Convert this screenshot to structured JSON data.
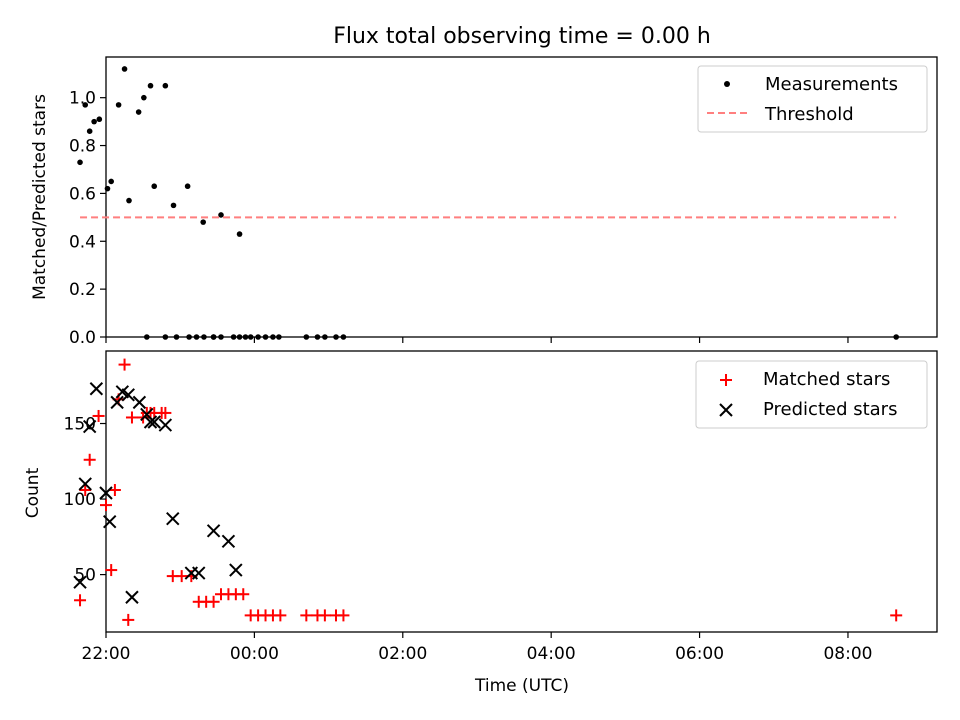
{
  "figure": {
    "title": "Flux total observing time = 0.00 h",
    "xlabel": "Time (UTC)"
  },
  "chart_data": [
    {
      "type": "scatter",
      "ylabel": "Matched/Predicted stars",
      "ylim": [
        0,
        1.17
      ],
      "yticks": [
        0.0,
        0.2,
        0.4,
        0.6,
        0.8,
        1.0
      ],
      "ytick_labels": [
        "0.0",
        "0.2",
        "0.4",
        "0.6",
        "0.8",
        "1.0"
      ],
      "x_unit": "hours since 00:00 UTC",
      "xlim": [
        -2.0,
        9.2
      ],
      "xticks": [
        -2,
        0,
        2,
        4,
        6,
        8
      ],
      "legend": "top-right",
      "series": [
        {
          "name": "Measurements",
          "kind": "scatter",
          "marker": "dot",
          "color": "#000000",
          "x": [
            -2.35,
            -2.28,
            -2.22,
            -2.16,
            -2.09,
            -1.98,
            -1.93,
            -1.83,
            -1.75,
            -1.69,
            -1.56,
            -1.49,
            -1.4,
            -1.35,
            -1.2,
            -1.09,
            -0.9,
            -0.69,
            -0.45,
            -0.2,
            -0.12,
            -0.55,
            -1.45,
            -1.2,
            -1.05,
            -0.88,
            -0.78,
            -0.68,
            -0.55,
            -0.45,
            -0.28,
            -0.2,
            -0.05,
            0.05,
            0.15,
            0.25,
            0.33,
            0.7,
            0.85,
            0.95,
            1.1,
            1.2,
            8.65
          ],
          "y": [
            0.73,
            0.97,
            0.86,
            0.9,
            0.91,
            0.62,
            0.65,
            0.97,
            1.12,
            0.57,
            0.94,
            1.0,
            1.05,
            0.63,
            1.05,
            0.55,
            0.63,
            0.48,
            0.51,
            0.43,
            0.0,
            0.0,
            0.0,
            0.0,
            0.0,
            0.0,
            0.0,
            0.0,
            0.0,
            0.0,
            0.0,
            0.0,
            0.0,
            0.0,
            0.0,
            0.0,
            0.0,
            0.0,
            0.0,
            0.0,
            0.0,
            0.0,
            0.0
          ]
        },
        {
          "name": "Threshold",
          "kind": "line",
          "dash": true,
          "color": "#ff7f7f",
          "x": [
            -2.35,
            8.65
          ],
          "y": [
            0.5,
            0.5
          ]
        }
      ]
    },
    {
      "type": "scatter",
      "ylabel": "Count",
      "ylim": [
        12,
        198
      ],
      "yticks": [
        50,
        100,
        150
      ],
      "ytick_labels": [
        "50",
        "100",
        "150"
      ],
      "x_unit": "hours since 00:00 UTC",
      "xlim": [
        -2.0,
        9.2
      ],
      "xticks": [
        -2,
        0,
        2,
        4,
        6,
        8
      ],
      "xtick_labels": [
        "22:00",
        "00:00",
        "02:00",
        "04:00",
        "06:00",
        "08:00"
      ],
      "legend": "top-right",
      "series": [
        {
          "name": "Matched stars",
          "kind": "scatter",
          "marker": "plus",
          "color": "#ff0000",
          "x": [
            -2.35,
            -2.28,
            -2.22,
            -2.1,
            -2.0,
            -1.93,
            -1.88,
            -1.83,
            -1.75,
            -1.7,
            -1.65,
            -1.5,
            -1.45,
            -1.4,
            -1.35,
            -1.25,
            -1.2,
            -1.1,
            -0.98,
            -0.85,
            -0.75,
            -0.65,
            -0.55,
            -0.45,
            -0.35,
            -0.25,
            -0.15,
            -0.05,
            0.05,
            0.15,
            0.25,
            0.35,
            0.7,
            0.85,
            0.95,
            1.1,
            1.2,
            8.65
          ],
          "y": [
            33,
            106,
            126,
            155,
            96,
            53,
            106,
            166,
            189,
            20,
            154,
            154,
            157,
            157,
            157,
            157,
            157,
            49,
            49,
            49,
            32,
            32,
            32,
            37,
            37,
            37,
            37,
            23,
            23,
            23,
            23,
            23,
            23,
            23,
            23,
            23,
            23,
            23
          ]
        },
        {
          "name": "Predicted stars",
          "kind": "scatter",
          "marker": "x",
          "color": "#000000",
          "x": [
            -2.35,
            -2.28,
            -2.22,
            -2.13,
            -2.0,
            -1.95,
            -1.85,
            -1.78,
            -1.7,
            -1.65,
            -1.55,
            -1.45,
            -1.4,
            -1.35,
            -1.2,
            -1.1,
            -0.85,
            -0.75,
            -0.55,
            -0.35,
            -0.25
          ],
          "y": [
            45,
            110,
            148,
            173,
            104,
            85,
            164,
            171,
            169,
            35,
            164,
            156,
            151,
            151,
            149,
            87,
            51,
            51,
            79,
            72,
            53
          ]
        }
      ]
    }
  ]
}
